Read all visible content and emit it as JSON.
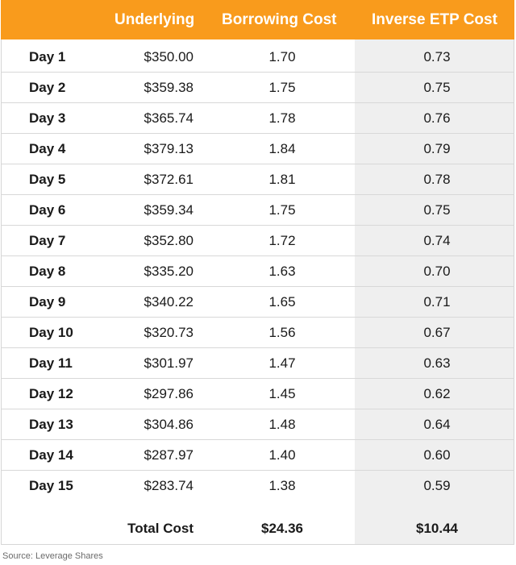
{
  "table": {
    "headers": {
      "underlying": "Underlying",
      "borrowing": "Borrowing Cost",
      "inverse": "Inverse ETP Cost"
    },
    "rows": [
      {
        "day": "Day 1",
        "underlying": "$350.00",
        "borrowing": "1.70",
        "inverse": "0.73"
      },
      {
        "day": "Day 2",
        "underlying": "$359.38",
        "borrowing": "1.75",
        "inverse": "0.75"
      },
      {
        "day": "Day 3",
        "underlying": "$365.74",
        "borrowing": "1.78",
        "inverse": "0.76"
      },
      {
        "day": "Day 4",
        "underlying": "$379.13",
        "borrowing": "1.84",
        "inverse": "0.79"
      },
      {
        "day": "Day 5",
        "underlying": "$372.61",
        "borrowing": "1.81",
        "inverse": "0.78"
      },
      {
        "day": "Day 6",
        "underlying": "$359.34",
        "borrowing": "1.75",
        "inverse": "0.75"
      },
      {
        "day": "Day 7",
        "underlying": "$352.80",
        "borrowing": "1.72",
        "inverse": "0.74"
      },
      {
        "day": "Day 8",
        "underlying": "$335.20",
        "borrowing": "1.63",
        "inverse": "0.70"
      },
      {
        "day": "Day 9",
        "underlying": "$340.22",
        "borrowing": "1.65",
        "inverse": "0.71"
      },
      {
        "day": "Day 10",
        "underlying": "$320.73",
        "borrowing": "1.56",
        "inverse": "0.67"
      },
      {
        "day": "Day 11",
        "underlying": "$301.97",
        "borrowing": "1.47",
        "inverse": "0.63"
      },
      {
        "day": "Day 12",
        "underlying": "$297.86",
        "borrowing": "1.45",
        "inverse": "0.62"
      },
      {
        "day": "Day 13",
        "underlying": "$304.86",
        "borrowing": "1.48",
        "inverse": "0.64"
      },
      {
        "day": "Day 14",
        "underlying": "$287.97",
        "borrowing": "1.40",
        "inverse": "0.60"
      },
      {
        "day": "Day 15",
        "underlying": "$283.74",
        "borrowing": "1.38",
        "inverse": "0.59"
      }
    ],
    "total": {
      "label": "Total Cost",
      "borrowing": "$24.36",
      "inverse": "$10.44"
    }
  },
  "source": "Source: Leverage Shares",
  "colors": {
    "header_bg": "#f99b1c",
    "header_text": "#ffffff",
    "shaded_column": "#efefef"
  }
}
